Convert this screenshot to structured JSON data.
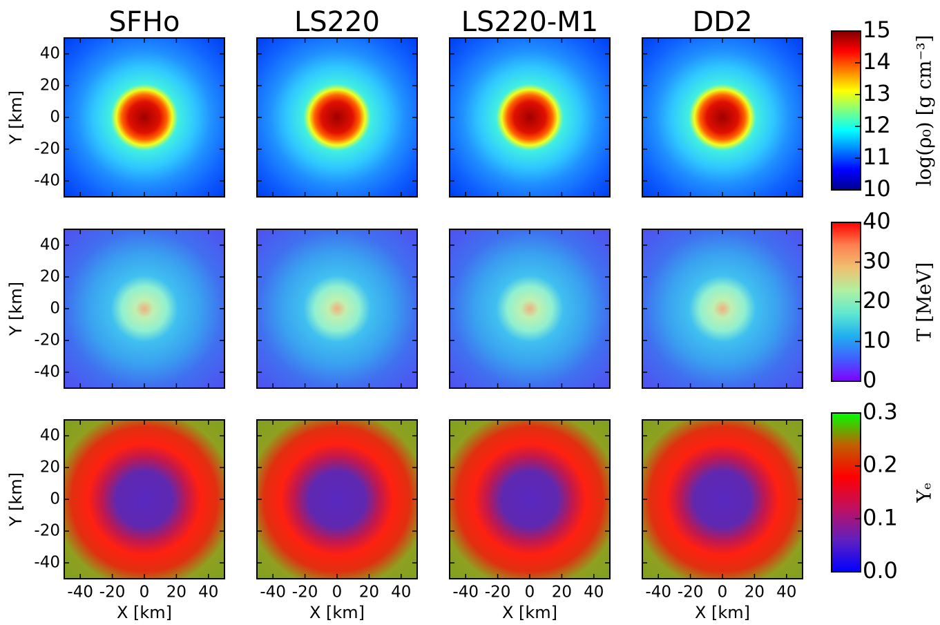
{
  "chart_data": {
    "type": "heatmap-grid",
    "columns": [
      "SFHo",
      "LS220",
      "LS220-M1",
      "DD2"
    ],
    "xlabel": "X [km]",
    "ylabel": "Y [km]",
    "xlim": [
      -50,
      50
    ],
    "ylim": [
      -50,
      50
    ],
    "xticks": [
      -40,
      -20,
      0,
      20,
      40
    ],
    "yticks": [
      -40,
      -20,
      0,
      20,
      40
    ],
    "rows": [
      {
        "colorbar_label": "log(ρ₀) [g cm⁻³]",
        "clim": [
          10,
          15
        ],
        "cticks": [
          10,
          11,
          12,
          13,
          14,
          15
        ],
        "colormap": [
          "#00008f",
          "#0000ff",
          "#0080ff",
          "#00ffff",
          "#80ff80",
          "#ffff00",
          "#ff8000",
          "#ff0000",
          "#800000"
        ]
      },
      {
        "colorbar_label": "T [MeV]",
        "clim": [
          0,
          40
        ],
        "cticks": [
          0,
          10,
          20,
          30,
          40
        ],
        "colormap": [
          "#8000ff",
          "#4060ff",
          "#20b0f0",
          "#60e8d0",
          "#b0f0a0",
          "#f0c070",
          "#ff8050",
          "#ff0000"
        ]
      },
      {
        "colorbar_label": "Yₑ",
        "clim": [
          0,
          0.3
        ],
        "cticks": [
          {
            "value": 0,
            "label": "0.0"
          },
          0.1,
          0.2,
          0.3
        ],
        "colormap": [
          "#0000ff",
          "#6020c0",
          "#c01060",
          "#ff0000",
          "#c06000",
          "#00ff00"
        ]
      }
    ]
  }
}
